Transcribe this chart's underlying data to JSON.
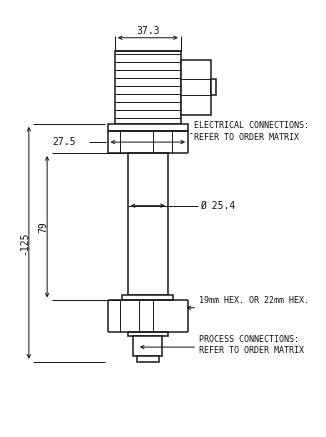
{
  "bg_color": "#ffffff",
  "line_color": "#1a1a1a",
  "fig_width": 3.26,
  "fig_height": 4.37,
  "dpi": 100,
  "annotations": {
    "dim_top": "37.3",
    "dim_mid": "27.5",
    "dim_body": "Ø 25.4",
    "dim_left_total": "-125",
    "dim_left_bottom": "79",
    "elec_conn_line1": "ELECTRICAL CONNECTIONS:",
    "elec_conn_line2": "REFER TO ORDER MATRIX",
    "proc_conn_label": "19mm HEX. OR 22mm HEX.",
    "proc_conn_line1": "PROCESS CONNECTIONS:",
    "proc_conn_line2": "REFER TO ORDER MATRIX"
  }
}
